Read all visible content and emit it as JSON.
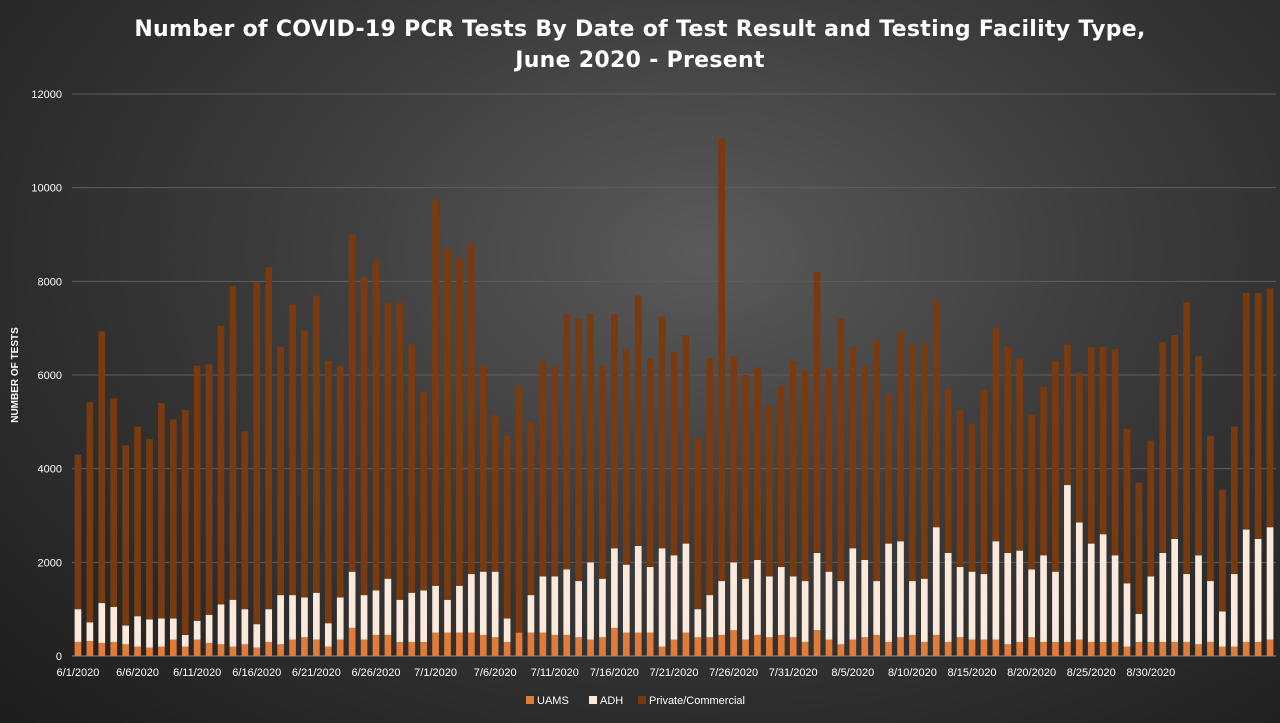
{
  "chart_data": {
    "type": "bar",
    "stacked": true,
    "title_line1": "Number of COVID-19 PCR Tests By Date of Test Result and Testing Facility Type,",
    "title_line2": "June 2020 - Present",
    "ylabel": "NUMBER OF TESTS",
    "xlabel": "",
    "ylim": [
      0,
      12000
    ],
    "yticks": [
      0,
      2000,
      4000,
      6000,
      8000,
      10000,
      12000
    ],
    "grid": true,
    "legend_position": "bottom",
    "start_date": "6/1/2020",
    "x_tick_labels": [
      "6/1/2020",
      "6/6/2020",
      "6/11/2020",
      "6/16/2020",
      "6/21/2020",
      "6/26/2020",
      "7/1/2020",
      "7/6/2020",
      "7/11/2020",
      "7/16/2020",
      "7/21/2020",
      "7/26/2020",
      "7/31/2020",
      "8/5/2020",
      "8/10/2020",
      "8/15/2020",
      "8/20/2020",
      "8/25/2020",
      "8/30/2020"
    ],
    "series": [
      {
        "name": "UAMS",
        "color": "#e07b39",
        "values": [
          300,
          320,
          280,
          300,
          250,
          200,
          180,
          200,
          350,
          200,
          350,
          280,
          250,
          200,
          250,
          180,
          300,
          250,
          350,
          400,
          350,
          200,
          350,
          600,
          350,
          450,
          450,
          300,
          300,
          300,
          500,
          500,
          500,
          500,
          450,
          400,
          300,
          500,
          500,
          500,
          450,
          450,
          400,
          350,
          400,
          600,
          500,
          500,
          500,
          200,
          350,
          500,
          400,
          400,
          450,
          550,
          350,
          450,
          400,
          450,
          400,
          300,
          550,
          350,
          250,
          350,
          400,
          450,
          300,
          400,
          450,
          300,
          450,
          300,
          400,
          350,
          350,
          350,
          250,
          300,
          400,
          300,
          300,
          300,
          350,
          300,
          300,
          300,
          200,
          300,
          300,
          300,
          300,
          300,
          250,
          300,
          200,
          200,
          300,
          300,
          350
        ]
      },
      {
        "name": "ADH",
        "color": "#fbe9dc",
        "values": [
          700,
          400,
          850,
          750,
          400,
          650,
          600,
          600,
          450,
          250,
          400,
          600,
          850,
          1000,
          750,
          500,
          700,
          1050,
          950,
          850,
          1000,
          500,
          900,
          1200,
          950,
          950,
          1200,
          900,
          1050,
          1100,
          1000,
          700,
          1000,
          1250,
          1350,
          1400,
          500,
          0,
          800,
          1200,
          1250,
          1400,
          1200,
          1650,
          1250,
          1700,
          1450,
          1850,
          1400,
          2100,
          1800,
          1900,
          600,
          900,
          1150,
          1450,
          1300,
          1600,
          1300,
          1450,
          1300,
          1300,
          1650,
          1450,
          1350,
          1950,
          1650,
          1150,
          2100,
          2050,
          1150,
          1350,
          2300,
          1900,
          1500,
          1450,
          1400,
          2100,
          1950,
          1950,
          1450,
          1850,
          1500,
          3350,
          2500,
          2100,
          2300,
          1850,
          1350,
          600,
          1400,
          1900,
          2200,
          1450,
          1900,
          1300,
          750,
          1550,
          2400,
          2200,
          2400
        ]
      },
      {
        "name": "Private/Commercial",
        "color": "#7a3a10",
        "values": [
          3300,
          4700,
          5800,
          4450,
          3850,
          4050,
          3850,
          4600,
          4250,
          4800,
          5450,
          5350,
          5950,
          6700,
          3800,
          7300,
          7300,
          5300,
          6200,
          5700,
          6350,
          5600,
          4950,
          7200,
          6800,
          7050,
          5900,
          6350,
          5300,
          4250,
          8250,
          7500,
          7000,
          7050,
          4400,
          3350,
          3900,
          5250,
          3700,
          4600,
          4500,
          5450,
          5600,
          5300,
          4550,
          5000,
          4600,
          5350,
          4450,
          4950,
          4350,
          4450,
          3650,
          5050,
          9450,
          4400,
          4350,
          4100,
          3650,
          3850,
          4600,
          4500,
          6000,
          4350,
          5600,
          4300,
          4150,
          5150,
          3200,
          4500,
          5050,
          5000,
          4850,
          3500,
          3350,
          3150,
          3950,
          4550,
          4400,
          4100,
          3300,
          3600,
          4500,
          3000,
          3200,
          4200,
          4000,
          4400,
          3300,
          2800,
          2900,
          4500,
          4350,
          5800,
          4250,
          3100,
          2600,
          3150,
          5050,
          5250,
          5100
        ]
      }
    ]
  }
}
